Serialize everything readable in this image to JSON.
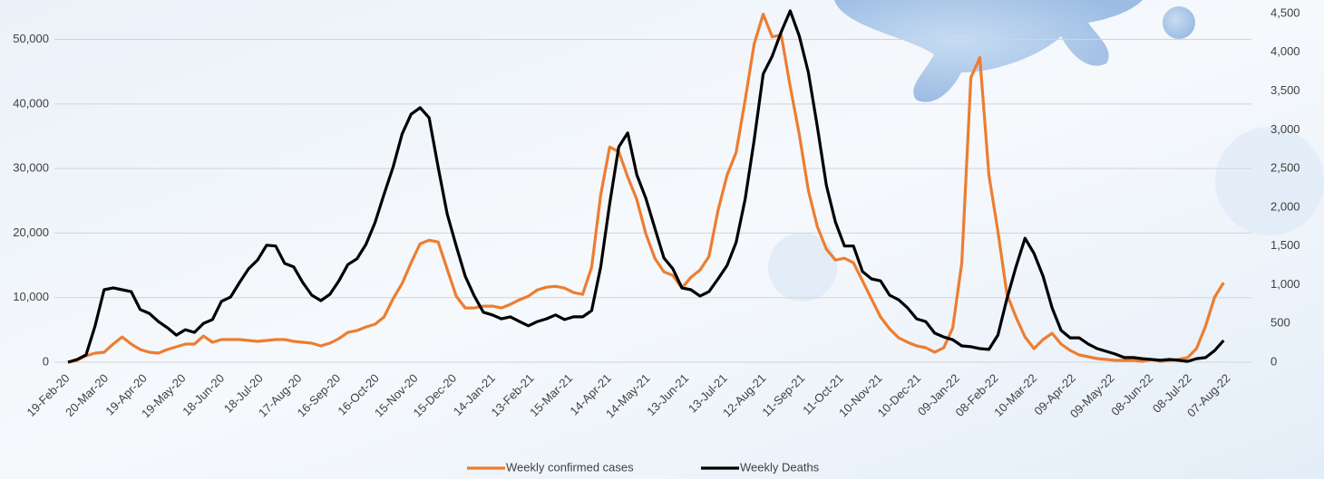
{
  "chart_data": {
    "type": "line",
    "x": [
      "2020-02-19",
      "2020-02-26",
      "2020-03-04",
      "2020-03-11",
      "2020-03-18",
      "2020-03-25",
      "2020-04-01",
      "2020-04-08",
      "2020-04-15",
      "2020-04-22",
      "2020-04-29",
      "2020-05-06",
      "2020-05-13",
      "2020-05-20",
      "2020-05-27",
      "2020-06-03",
      "2020-06-10",
      "2020-06-17",
      "2020-06-24",
      "2020-07-01",
      "2020-07-08",
      "2020-07-15",
      "2020-07-22",
      "2020-07-29",
      "2020-08-05",
      "2020-08-12",
      "2020-08-19",
      "2020-08-26",
      "2020-09-02",
      "2020-09-09",
      "2020-09-16",
      "2020-09-23",
      "2020-09-30",
      "2020-10-07",
      "2020-10-14",
      "2020-10-21",
      "2020-10-28",
      "2020-11-04",
      "2020-11-11",
      "2020-11-18",
      "2020-11-25",
      "2020-12-02",
      "2020-12-09",
      "2020-12-16",
      "2020-12-23",
      "2020-12-30",
      "2021-01-06",
      "2021-01-13",
      "2021-01-20",
      "2021-01-27",
      "2021-02-03",
      "2021-02-10",
      "2021-02-17",
      "2021-02-24",
      "2021-03-03",
      "2021-03-10",
      "2021-03-17",
      "2021-03-24",
      "2021-03-31",
      "2021-04-07",
      "2021-04-14",
      "2021-04-21",
      "2021-04-28",
      "2021-05-05",
      "2021-05-12",
      "2021-05-19",
      "2021-05-26",
      "2021-06-02",
      "2021-06-09",
      "2021-06-16",
      "2021-06-23",
      "2021-06-30",
      "2021-07-07",
      "2021-07-14",
      "2021-07-21",
      "2021-07-28",
      "2021-08-04",
      "2021-08-11",
      "2021-08-18",
      "2021-08-25",
      "2021-09-01",
      "2021-09-08",
      "2021-09-15",
      "2021-09-22",
      "2021-09-29",
      "2021-10-06",
      "2021-10-13",
      "2021-10-20",
      "2021-10-27",
      "2021-11-03",
      "2021-11-10",
      "2021-11-17",
      "2021-11-24",
      "2021-12-01",
      "2021-12-08",
      "2021-12-15",
      "2021-12-22",
      "2021-12-29",
      "2022-01-05",
      "2022-01-12",
      "2022-01-19",
      "2022-01-26",
      "2022-02-02",
      "2022-02-09",
      "2022-02-16",
      "2022-02-23",
      "2022-03-02",
      "2022-03-09",
      "2022-03-16",
      "2022-03-23",
      "2022-03-30",
      "2022-04-06",
      "2022-04-13",
      "2022-04-20",
      "2022-04-27",
      "2022-05-04",
      "2022-05-11",
      "2022-05-18",
      "2022-05-25",
      "2022-06-01",
      "2022-06-08",
      "2022-06-15",
      "2022-06-22",
      "2022-06-29",
      "2022-07-06",
      "2022-07-13",
      "2022-07-20",
      "2022-07-27",
      "2022-08-03"
    ],
    "xlim": [
      "2020-02-19",
      "2022-08-07"
    ],
    "xticks": [
      {
        "value": "2020-02-19",
        "label": "19-Feb-20"
      },
      {
        "value": "2020-03-20",
        "label": "20-Mar-20"
      },
      {
        "value": "2020-04-19",
        "label": "19-Apr-20"
      },
      {
        "value": "2020-05-19",
        "label": "19-May-20"
      },
      {
        "value": "2020-06-18",
        "label": "18-Jun-20"
      },
      {
        "value": "2020-07-18",
        "label": "18-Jul-20"
      },
      {
        "value": "2020-08-17",
        "label": "17-Aug-20"
      },
      {
        "value": "2020-09-16",
        "label": "16-Sep-20"
      },
      {
        "value": "2020-10-16",
        "label": "16-Oct-20"
      },
      {
        "value": "2020-11-15",
        "label": "15-Nov-20"
      },
      {
        "value": "2020-12-15",
        "label": "15-Dec-20"
      },
      {
        "value": "2021-01-14",
        "label": "14-Jan-21"
      },
      {
        "value": "2021-02-13",
        "label": "13-Feb-21"
      },
      {
        "value": "2021-03-15",
        "label": "15-Mar-21"
      },
      {
        "value": "2021-04-14",
        "label": "14-Apr-21"
      },
      {
        "value": "2021-05-14",
        "label": "14-May-21"
      },
      {
        "value": "2021-06-13",
        "label": "13-Jun-21"
      },
      {
        "value": "2021-07-13",
        "label": "13-Jul-21"
      },
      {
        "value": "2021-08-12",
        "label": "12-Aug-21"
      },
      {
        "value": "2021-09-11",
        "label": "11-Sep-21"
      },
      {
        "value": "2021-10-11",
        "label": "11-Oct-21"
      },
      {
        "value": "2021-11-10",
        "label": "10-Nov-21"
      },
      {
        "value": "2021-12-10",
        "label": "10-Dec-21"
      },
      {
        "value": "2022-01-09",
        "label": "09-Jan-22"
      },
      {
        "value": "2022-02-08",
        "label": "08-Feb-22"
      },
      {
        "value": "2022-03-10",
        "label": "10-Mar-22"
      },
      {
        "value": "2022-04-09",
        "label": "09-Apr-22"
      },
      {
        "value": "2022-05-09",
        "label": "09-May-22"
      },
      {
        "value": "2022-06-08",
        "label": "08-Jun-22"
      },
      {
        "value": "2022-07-08",
        "label": "08-Jul-22"
      },
      {
        "value": "2022-08-07",
        "label": "07-Aug-22"
      }
    ],
    "ylim": [
      0,
      54000
    ],
    "yticks": [
      0,
      {
        "value": 10000,
        "label": "10,000"
      },
      {
        "value": 20000,
        "label": "20,000"
      },
      {
        "value": 30000,
        "label": "30,000"
      },
      {
        "value": 40000,
        "label": "40,000"
      },
      {
        "value": 50000,
        "label": "50,000"
      }
    ],
    "y2lim": [
      0,
      4500
    ],
    "y2ticks": [
      0,
      500,
      {
        "value": 1000,
        "label": "1,000"
      },
      {
        "value": 1500,
        "label": "1,500"
      },
      {
        "value": 2000,
        "label": "2,000"
      },
      {
        "value": 2500,
        "label": "2,500"
      },
      {
        "value": 3000,
        "label": "3,000"
      },
      {
        "value": 3500,
        "label": "3,500"
      },
      {
        "value": 4000,
        "label": "4,000"
      },
      {
        "value": 4500,
        "label": "4,500"
      }
    ],
    "grid": true,
    "legend": "bottom",
    "series": [
      {
        "name": "Weekly confirmed cases",
        "color": "#ed7d31",
        "values": [
          0,
          280,
          980,
          1400,
          1540,
          2800,
          3920,
          2800,
          1960,
          1540,
          1400,
          1960,
          2380,
          2800,
          2800,
          4060,
          3080,
          3500,
          3500,
          3500,
          3360,
          3220,
          3360,
          3500,
          3500,
          3220,
          3080,
          2940,
          2520,
          2940,
          3640,
          4620,
          4900,
          5460,
          5880,
          7000,
          9800,
          12180,
          15400,
          18340,
          18900,
          18620,
          14420,
          10220,
          8400,
          8400,
          8680,
          8680,
          8400,
          8960,
          9660,
          10220,
          11200,
          11620,
          11760,
          11480,
          10780,
          10500,
          14700,
          25900,
          33320,
          32620,
          28700,
          25200,
          19880,
          16100,
          14000,
          13440,
          11480,
          13160,
          14280,
          16380,
          23520,
          28980,
          32480,
          40600,
          49280,
          53900,
          50400,
          50680,
          42700,
          35280,
          26600,
          21000,
          17500,
          15820,
          16100,
          15400,
          12600,
          9800,
          7000,
          5180,
          3780,
          3080,
          2520,
          2240,
          1540,
          2240,
          5320,
          15400,
          44100,
          47180,
          28980,
          20300,
          10500,
          7000,
          3920,
          2100,
          3500,
          4480,
          2800,
          1820,
          1120,
          840,
          560,
          420,
          280,
          280,
          280,
          140,
          420,
          140,
          280,
          420,
          700,
          2100,
          5600,
          10080,
          12320
        ]
      },
      {
        "name": "Weekly Deaths",
        "color": "#000000",
        "axis": "y2",
        "values": [
          0,
          35,
          95,
          470,
          935,
          960,
          935,
          910,
          680,
          630,
          525,
          445,
          350,
          420,
          385,
          500,
          550,
          785,
          840,
          1030,
          1205,
          1320,
          1510,
          1500,
          1275,
          1230,
          1030,
          865,
          795,
          875,
          1050,
          1260,
          1335,
          1520,
          1800,
          2165,
          2515,
          2945,
          3200,
          3285,
          3155,
          2515,
          1915,
          1500,
          1110,
          855,
          645,
          610,
          560,
          585,
          525,
          470,
          525,
          560,
          610,
          550,
          585,
          585,
          665,
          1230,
          2045,
          2780,
          2960,
          2420,
          2115,
          1730,
          1345,
          1205,
          960,
          935,
          855,
          910,
          1075,
          1250,
          1545,
          2105,
          2865,
          3720,
          3950,
          4265,
          4535,
          4210,
          3740,
          3040,
          2280,
          1810,
          1500,
          1500,
          1170,
          1075,
          1050,
          865,
          805,
          700,
          560,
          525,
          375,
          325,
          290,
          210,
          200,
          175,
          165,
          350,
          820,
          1230,
          1600,
          1405,
          1110,
          700,
          410,
          315,
          315,
          235,
          175,
          140,
          105,
          60,
          60,
          45,
          35,
          25,
          35,
          25,
          10,
          45,
          60,
          150,
          280
        ]
      }
    ]
  }
}
